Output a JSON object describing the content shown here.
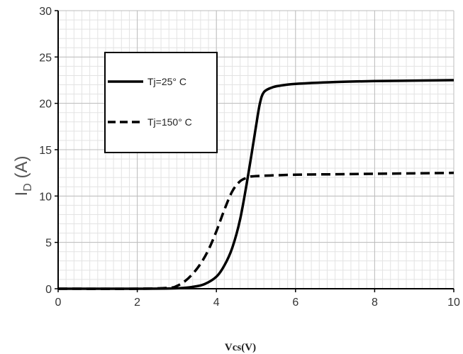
{
  "chart_data": {
    "type": "line",
    "title": "",
    "xlabel": "Vcs(V)",
    "ylabel_main": "I",
    "ylabel_sub": "D",
    "ylabel_unit": " (A)",
    "xlim": [
      0,
      10
    ],
    "ylim": [
      0,
      30
    ],
    "x_ticks": [
      0,
      2,
      4,
      6,
      8,
      10
    ],
    "y_ticks": [
      0,
      5,
      10,
      15,
      20,
      25,
      30
    ],
    "grid": true,
    "legend_position": "top-left",
    "series": [
      {
        "name": "Tj=25°  C",
        "style": "solid",
        "color": "#000000",
        "x": [
          0,
          2,
          3.0,
          3.4,
          3.7,
          4.0,
          4.2,
          4.4,
          4.6,
          4.8,
          5.0,
          5.1,
          5.2,
          5.4,
          5.6,
          6.0,
          7.0,
          8.0,
          9.0,
          10.0
        ],
        "y": [
          0,
          0,
          0.05,
          0.2,
          0.5,
          1.3,
          2.5,
          4.4,
          7.5,
          12.2,
          17.5,
          20.0,
          21.2,
          21.7,
          21.9,
          22.1,
          22.3,
          22.4,
          22.45,
          22.5
        ]
      },
      {
        "name": "Tj=150°  C",
        "style": "dashed",
        "color": "#000000",
        "x": [
          0,
          2,
          2.8,
          3.0,
          3.2,
          3.4,
          3.6,
          3.8,
          4.0,
          4.2,
          4.4,
          4.6,
          4.8,
          5.0,
          6.0,
          7.0,
          8.0,
          9.0,
          10.0
        ],
        "y": [
          0,
          0,
          0.1,
          0.3,
          0.8,
          1.6,
          2.7,
          4.2,
          6.2,
          8.5,
          10.5,
          11.6,
          12.0,
          12.15,
          12.3,
          12.35,
          12.4,
          12.45,
          12.5
        ]
      }
    ]
  }
}
